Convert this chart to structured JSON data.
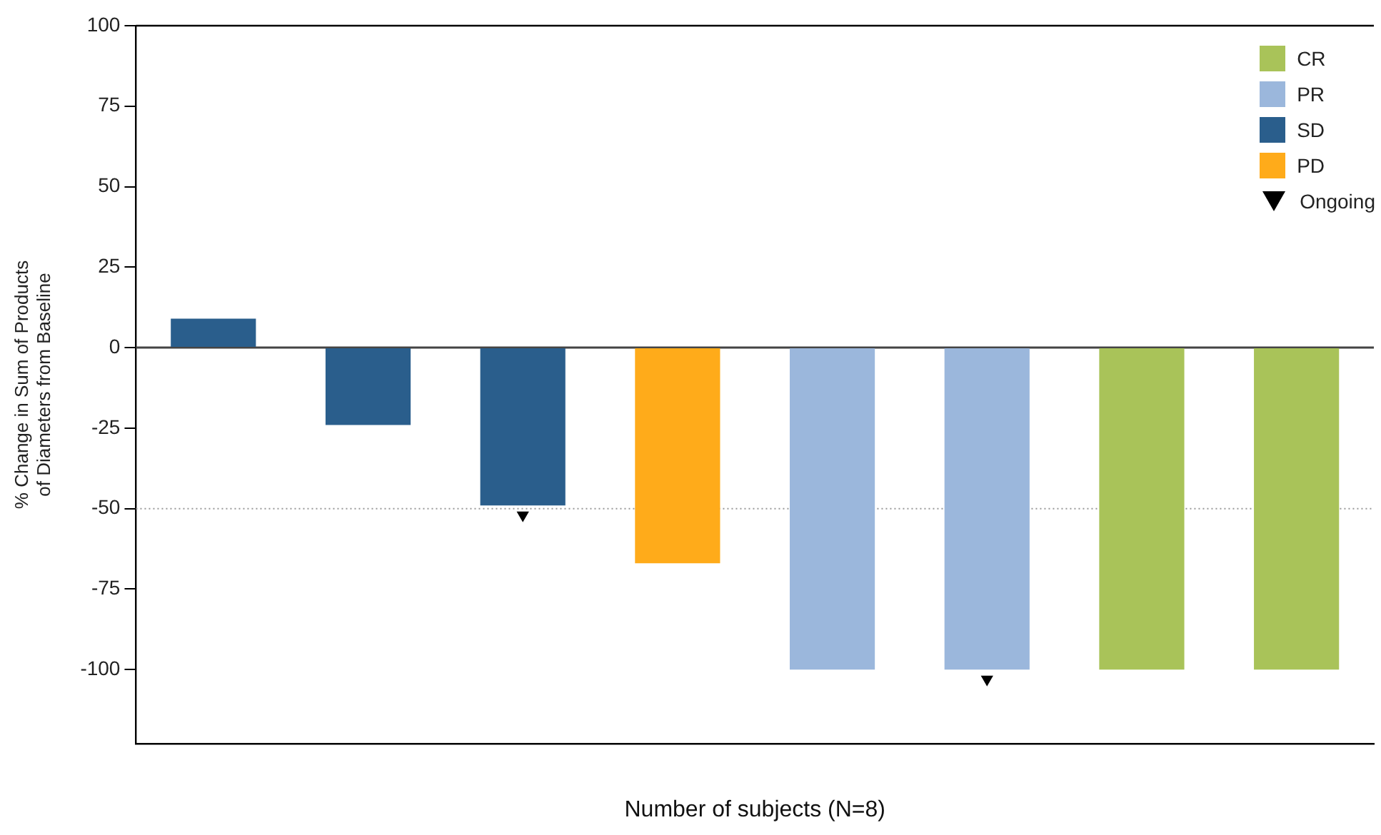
{
  "chart_data": {
    "type": "bar",
    "xlabel": "Number of subjects (N=8)",
    "ylabel": "% Change in Sum of Products of Diameters from Baseline",
    "categories": [
      null,
      null,
      null,
      null,
      null,
      null,
      null,
      null
    ],
    "series": [
      {
        "name": "CR",
        "color": "#a9c359",
        "values": [
          null,
          null,
          null,
          null,
          null,
          null,
          -100,
          -100
        ]
      },
      {
        "name": "PR",
        "color": "#9bb7dc",
        "values": [
          null,
          null,
          null,
          null,
          -100,
          -100,
          null,
          null
        ]
      },
      {
        "name": "SD",
        "color": "#2a5e8c",
        "values": [
          9,
          -24,
          -49,
          null,
          null,
          null,
          null,
          null
        ]
      },
      {
        "name": "PD",
        "color": "#ffab1a",
        "values": [
          null,
          null,
          null,
          -67,
          null,
          null,
          null,
          null
        ]
      },
      {
        "name": "Ongoing",
        "type": "scatter",
        "marker": "triangle",
        "color": "#000000",
        "values": [
          null,
          null,
          -52,
          null,
          null,
          -103,
          null,
          null
        ]
      }
    ],
    "ylim": [
      -123,
      100
    ],
    "yticks": [
      -100,
      -75,
      -50,
      -25,
      0,
      25,
      50,
      75,
      100
    ],
    "ref_lines": [
      {
        "axis": "y",
        "value": 0,
        "line_style": "solid",
        "color": "#444444"
      },
      {
        "axis": "y",
        "value": -50,
        "line_style": "dotted",
        "color": "#999999"
      }
    ],
    "grid": false,
    "legend": "top right"
  }
}
